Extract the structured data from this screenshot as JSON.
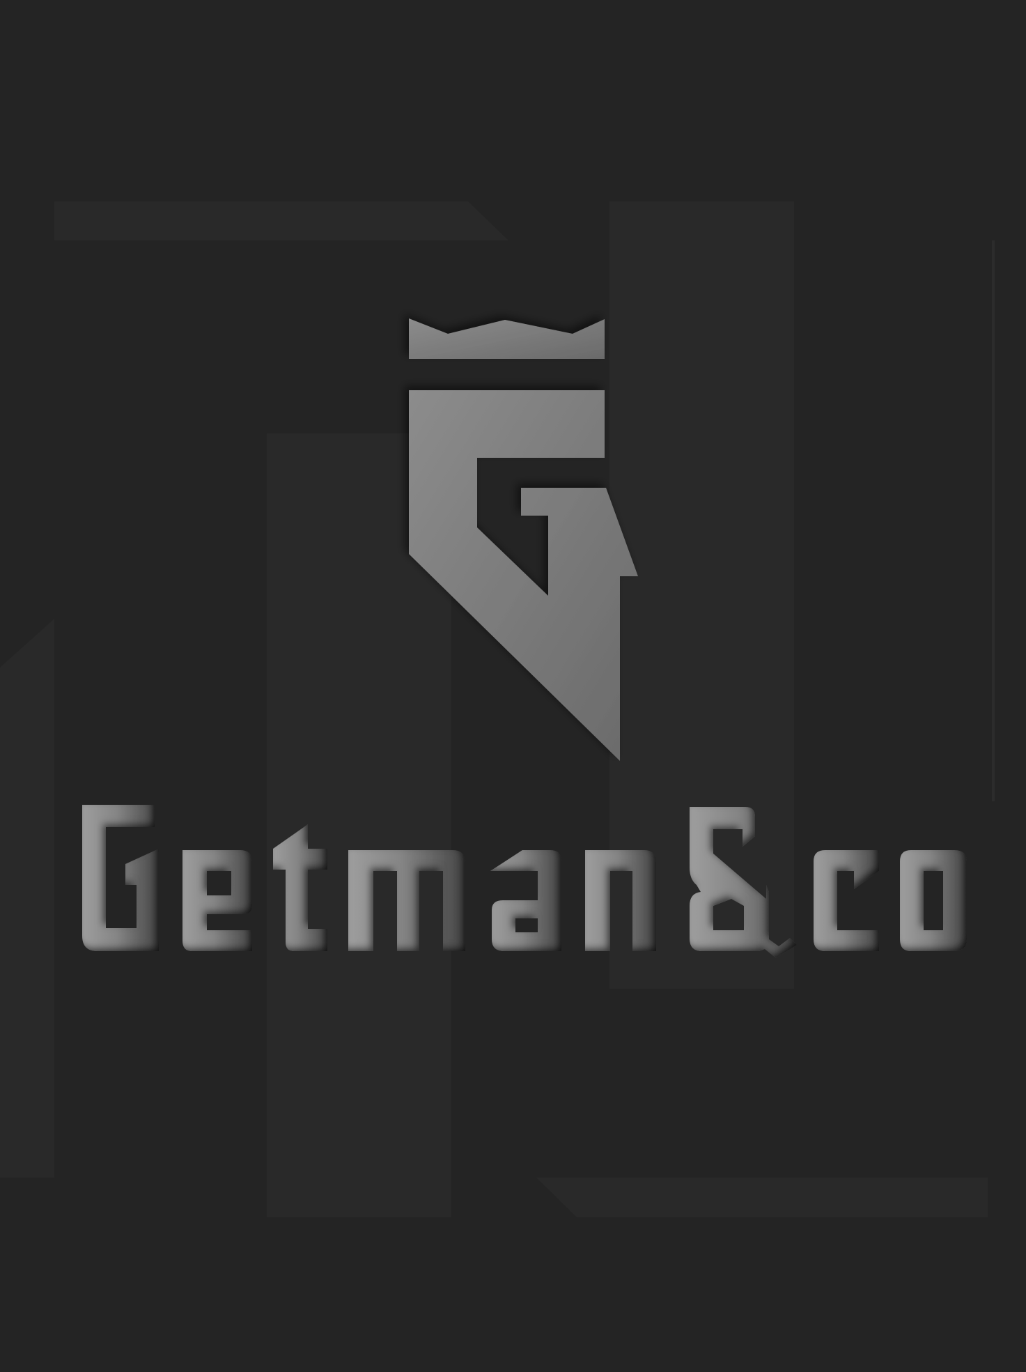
{
  "brand": {
    "name": "Getman&co",
    "logo_icon": "crowned-g-monogram-icon"
  },
  "colors": {
    "background": "#242424",
    "panel": "#292929",
    "logo_light": "#8a8a8a",
    "logo_dark": "#555555"
  }
}
